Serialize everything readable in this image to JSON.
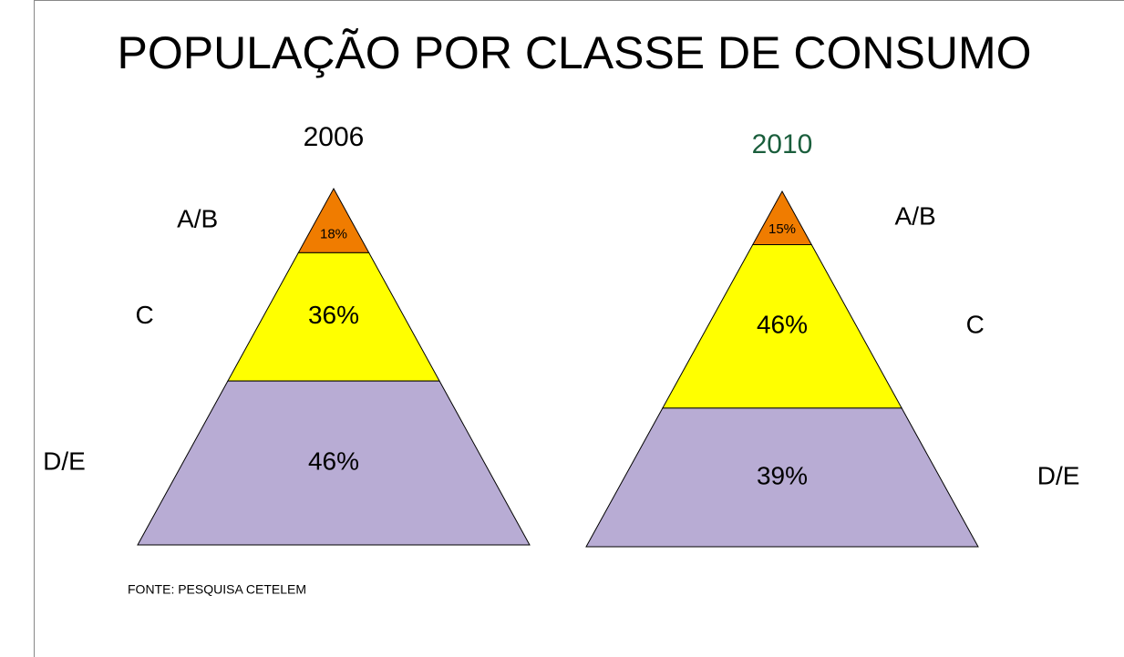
{
  "title": "POPULAÇÃO POR CLASSE DE CONSUMO",
  "source": "FONTE: PESQUISA CETELEM",
  "chart_data": [
    {
      "type": "pyramid",
      "title": "2006",
      "title_color": "#000000",
      "categories": [
        "A/B",
        "C",
        "D/E"
      ],
      "values": [
        18,
        36,
        46
      ],
      "value_labels": [
        "18%",
        "36%",
        "46%"
      ],
      "colors": [
        "#f07c00",
        "#ffff00",
        "#b8acd4"
      ]
    },
    {
      "type": "pyramid",
      "title": "2010",
      "title_color": "#1a5e3c",
      "categories": [
        "A/B",
        "C",
        "D/E"
      ],
      "values": [
        15,
        46,
        39
      ],
      "value_labels": [
        "15%",
        "46%",
        "39%"
      ],
      "colors": [
        "#f07c00",
        "#ffff00",
        "#b8acd4"
      ]
    }
  ]
}
